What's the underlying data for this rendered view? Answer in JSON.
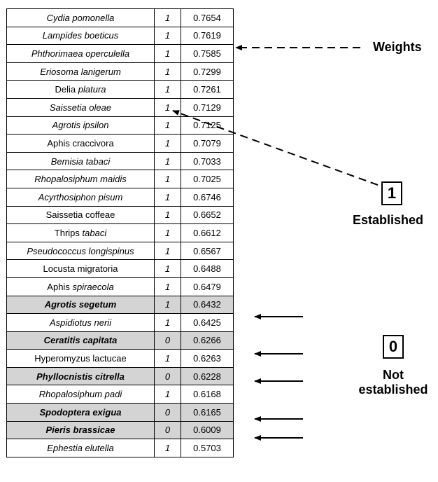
{
  "rows": [
    {
      "name": [
        {
          "t": "Cydia pomonella",
          "it": true
        }
      ],
      "est": "1",
      "weight": "0.7654",
      "hl": false
    },
    {
      "name": [
        {
          "t": "Lampides boeticus",
          "it": true
        }
      ],
      "est": "1",
      "weight": "0.7619",
      "hl": false
    },
    {
      "name": [
        {
          "t": "Phthorimaea operculella",
          "it": true
        }
      ],
      "est": "1",
      "weight": "0.7585",
      "hl": false
    },
    {
      "name": [
        {
          "t": "Eriosoma lanigerum",
          "it": true
        }
      ],
      "est": "1",
      "weight": "0.7299",
      "hl": false
    },
    {
      "name": [
        {
          "t": "Delia ",
          "it": false
        },
        {
          "t": "platura",
          "it": true
        }
      ],
      "est": "1",
      "weight": "0.7261",
      "hl": false
    },
    {
      "name": [
        {
          "t": "Saissetia oleae",
          "it": true
        }
      ],
      "est": "1",
      "weight": "0.7129",
      "hl": false
    },
    {
      "name": [
        {
          "t": "Agrotis ipsilon",
          "it": true
        }
      ],
      "est": "1",
      "weight": "0.7125",
      "hl": false
    },
    {
      "name": [
        {
          "t": "Aphis craccivora",
          "it": false
        }
      ],
      "est": "1",
      "weight": "0.7079",
      "hl": false
    },
    {
      "name": [
        {
          "t": "Bemisia tabaci",
          "it": true
        }
      ],
      "est": "1",
      "weight": "0.7033",
      "hl": false
    },
    {
      "name": [
        {
          "t": "Rhopalosiphum maidis",
          "it": true
        }
      ],
      "est": "1",
      "weight": "0.7025",
      "hl": false
    },
    {
      "name": [
        {
          "t": "Acyrthosiphon pisum",
          "it": true
        }
      ],
      "est": "1",
      "weight": "0.6746",
      "hl": false
    },
    {
      "name": [
        {
          "t": "Saissetia coffeae",
          "it": false
        }
      ],
      "est": "1",
      "weight": "0.6652",
      "hl": false
    },
    {
      "name": [
        {
          "t": "Thrips ",
          "it": false
        },
        {
          "t": "tabaci",
          "it": true
        }
      ],
      "est": "1",
      "weight": "0.6612",
      "hl": false
    },
    {
      "name": [
        {
          "t": "Pseudococcus longispinus",
          "it": true
        }
      ],
      "est": "1",
      "weight": "0.6567",
      "hl": false
    },
    {
      "name": [
        {
          "t": "Locusta migratoria",
          "it": false
        }
      ],
      "est": "1",
      "weight": "0.6488",
      "hl": false
    },
    {
      "name": [
        {
          "t": "Aphis ",
          "it": false
        },
        {
          "t": "spiraecola",
          "it": true
        }
      ],
      "est": "1",
      "weight": "0.6479",
      "hl": false
    },
    {
      "name": [
        {
          "t": "Agrotis segetum",
          "it": true
        }
      ],
      "est": "1",
      "weight": "0.6432",
      "hl": true
    },
    {
      "name": [
        {
          "t": "Aspidiotus nerii",
          "it": true
        }
      ],
      "est": "1",
      "weight": "0.6425",
      "hl": false
    },
    {
      "name": [
        {
          "t": "Ceratitis capitata",
          "it": true
        }
      ],
      "est": "0",
      "weight": "0.6266",
      "hl": true
    },
    {
      "name": [
        {
          "t": "Hyperomyzus lactucae",
          "it": false
        }
      ],
      "est": "1",
      "weight": "0.6263",
      "hl": false
    },
    {
      "name": [
        {
          "t": "Phyllocnistis citrella",
          "it": true
        }
      ],
      "est": "0",
      "weight": "0.6228",
      "hl": true
    },
    {
      "name": [
        {
          "t": "Rhopalosiphum padi",
          "it": true
        }
      ],
      "est": "1",
      "weight": "0.6168",
      "hl": false
    },
    {
      "name": [
        {
          "t": "Spodoptera exigua",
          "it": true
        }
      ],
      "est": "0",
      "weight": "0.6165",
      "hl": true
    },
    {
      "name": [
        {
          "t": "Pieris brassicae",
          "it": true
        }
      ],
      "est": "0",
      "weight": "0.6009",
      "hl": true
    },
    {
      "name": [
        {
          "t": "Ephestia elutella",
          "it": true
        }
      ],
      "est": "1",
      "weight": "0.5703",
      "hl": false
    }
  ],
  "annotations": {
    "weights_label": "Weights",
    "established_box": "1",
    "established_label": "Established",
    "not_established_box": "0",
    "not_established_line1": "Not",
    "not_established_line2": "established"
  }
}
